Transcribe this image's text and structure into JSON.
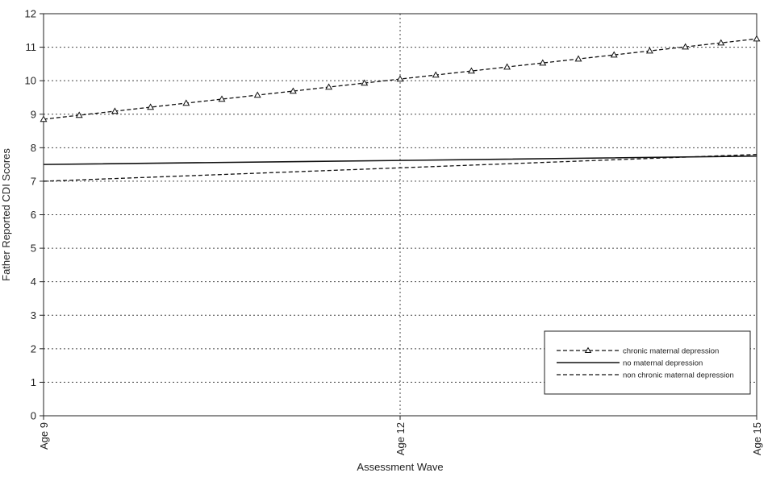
{
  "chart_data": {
    "type": "line",
    "title": "",
    "xlabel": "Assessment Wave",
    "ylabel": "Father Reported CDI Scores",
    "categories": [
      "Age 9",
      "Age 12",
      "Age 15"
    ],
    "ylim": [
      0,
      12
    ],
    "yticks": [
      0,
      1,
      2,
      3,
      4,
      5,
      6,
      7,
      8,
      9,
      10,
      11,
      12
    ],
    "grid": true,
    "legend_position": "bottom-right",
    "series": [
      {
        "name": "chronic maternal depression",
        "values": [
          8.85,
          10.05,
          11.25
        ],
        "line": "dashed",
        "marker": "triangle-open"
      },
      {
        "name": "no maternal depression",
        "values": [
          7.5,
          7.62,
          7.75
        ],
        "line": "solid",
        "marker": "none"
      },
      {
        "name": "non chronic maternal depression",
        "values": [
          7.0,
          7.4,
          7.8
        ],
        "line": "dashed",
        "marker": "none"
      }
    ]
  }
}
